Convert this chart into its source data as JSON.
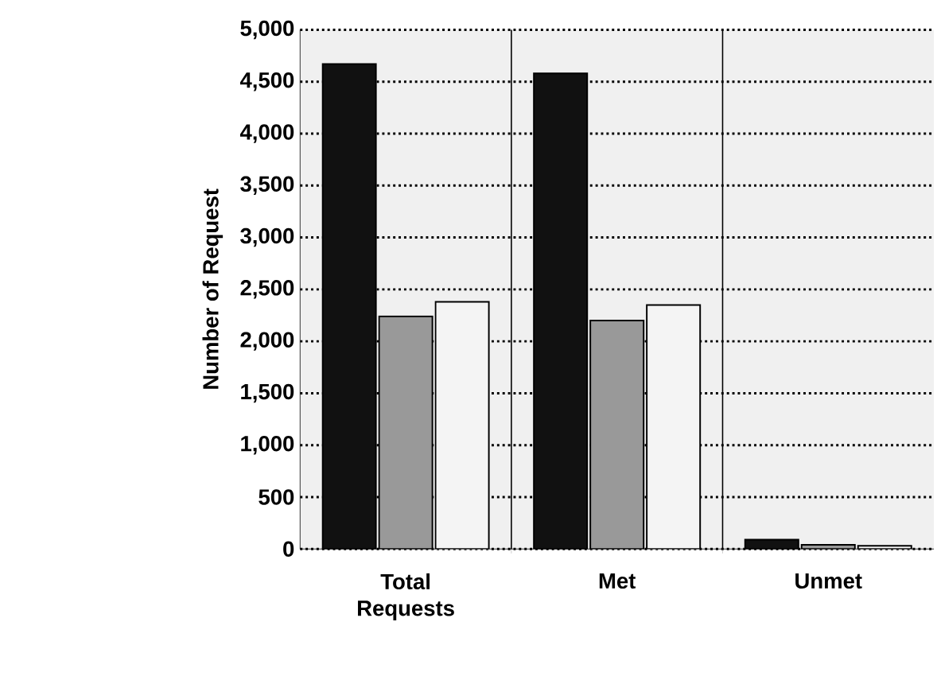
{
  "chart_data": {
    "type": "bar",
    "ylabel": "Number of Request",
    "categories": [
      "Total Requests",
      "Met",
      "Unmet"
    ],
    "series": [
      {
        "color": "#111111",
        "values": [
          4670,
          4580,
          90
        ]
      },
      {
        "color": "#999999",
        "values": [
          2240,
          2200,
          40
        ]
      },
      {
        "color": "#f4f4f4",
        "values": [
          2380,
          2350,
          30
        ]
      }
    ],
    "ylim": [
      0,
      5000
    ],
    "yticks": [
      {
        "value": 0,
        "label": "0"
      },
      {
        "value": 500,
        "label": "500"
      },
      {
        "value": 1000,
        "label": "1,000"
      },
      {
        "value": 1500,
        "label": "1,500"
      },
      {
        "value": 2000,
        "label": "2,000"
      },
      {
        "value": 2500,
        "label": "2,500"
      },
      {
        "value": 3000,
        "label": "3,000"
      },
      {
        "value": 3500,
        "label": "3,500"
      },
      {
        "value": 4000,
        "label": "4,000"
      },
      {
        "value": 4500,
        "label": "4,500"
      },
      {
        "value": 5000,
        "label": "5,000"
      }
    ],
    "grid": true
  }
}
